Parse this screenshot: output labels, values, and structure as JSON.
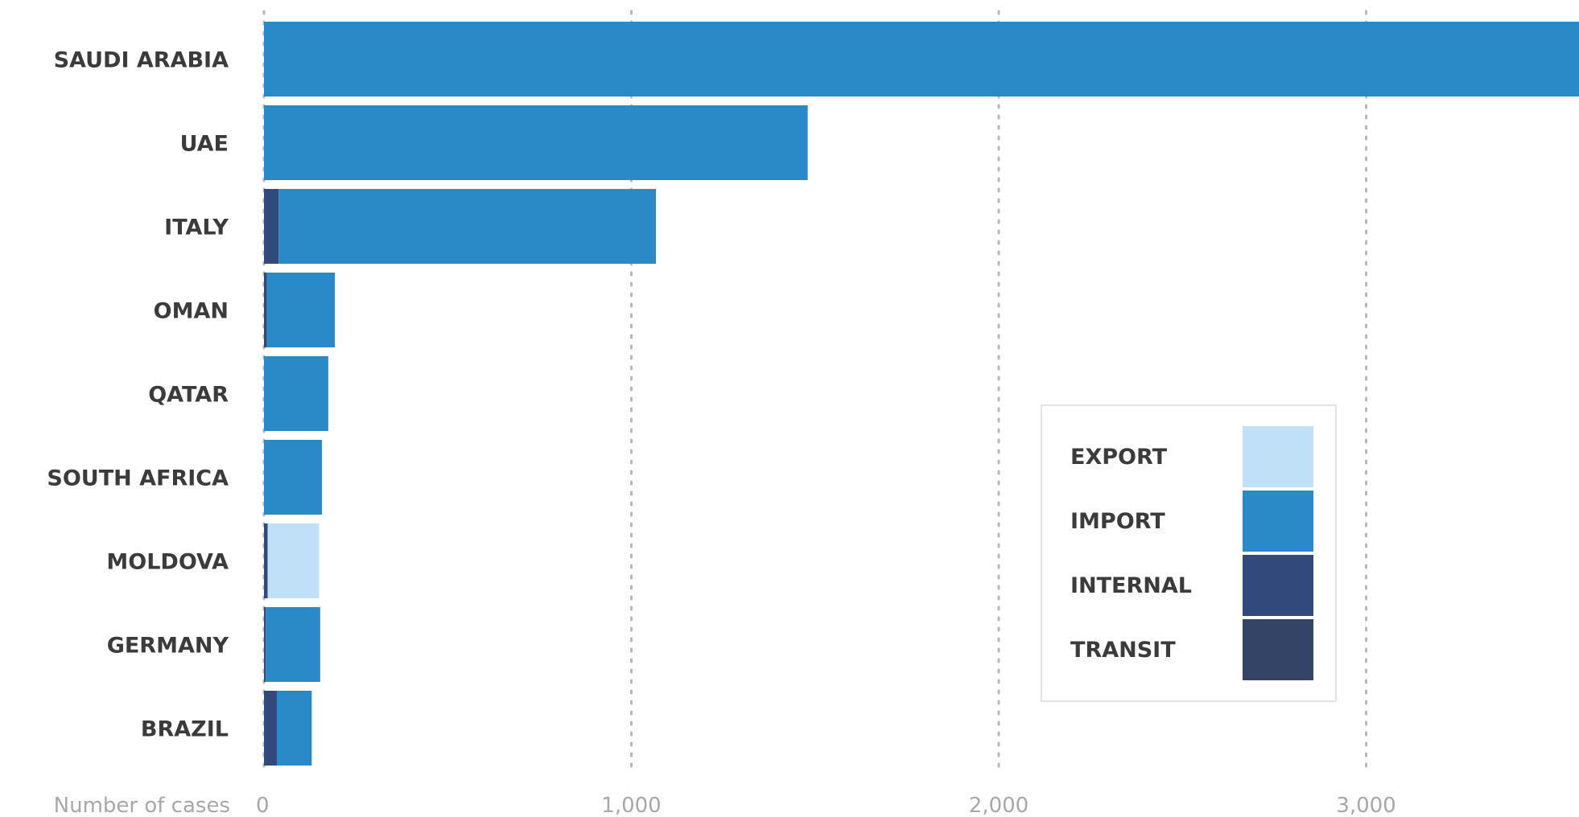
{
  "chart_data": {
    "type": "bar",
    "orientation": "horizontal",
    "stacked": true,
    "categories": [
      "SAUDI ARABIA",
      "UAE",
      "ITALY",
      "OMAN",
      "QATAR",
      "SOUTH AFRICA",
      "MOLDOVA",
      "GERMANY",
      "BRAZIL"
    ],
    "series": [
      {
        "name": "TRANSIT",
        "color": "#334466",
        "values": [
          0,
          0,
          0,
          0,
          0,
          0,
          0,
          0,
          0
        ]
      },
      {
        "name": "INTERNAL",
        "color": "#324a7b",
        "values": [
          0,
          0,
          40,
          8,
          0,
          0,
          10,
          5,
          35
        ]
      },
      {
        "name": "IMPORT",
        "color": "#2a8ac7",
        "values": [
          3600,
          1480,
          1027,
          185,
          175,
          158,
          0,
          148,
          95
        ]
      },
      {
        "name": "EXPORT",
        "color": "#bfe0f7",
        "values": [
          0,
          0,
          0,
          0,
          0,
          0,
          140,
          0,
          0
        ]
      }
    ],
    "xlabel": "Number of cases",
    "x_ticks": [
      "0",
      "1,000",
      "2,000",
      "3,000"
    ],
    "x_tick_values": [
      0,
      1000,
      2000,
      3000
    ],
    "xlim": [
      0,
      3600
    ],
    "grid": "vertical dotted",
    "legend": {
      "placement": "bottom-right",
      "items": [
        "EXPORT",
        "IMPORT",
        "INTERNAL",
        "TRANSIT"
      ]
    }
  }
}
